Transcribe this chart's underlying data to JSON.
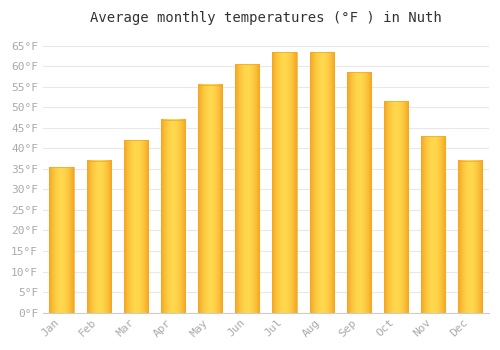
{
  "title": "Average monthly temperatures (°F ) in Nuth",
  "months": [
    "Jan",
    "Feb",
    "Mar",
    "Apr",
    "May",
    "Jun",
    "Jul",
    "Aug",
    "Sep",
    "Oct",
    "Nov",
    "Dec"
  ],
  "values": [
    35.5,
    37.0,
    42.0,
    47.0,
    55.5,
    60.5,
    63.5,
    63.5,
    58.5,
    51.5,
    43.0,
    37.0
  ],
  "bar_color_center": "#FFD84D",
  "bar_color_edge": "#F5A623",
  "background_color": "#ffffff",
  "grid_color": "#e8e8e8",
  "yticks": [
    0,
    5,
    10,
    15,
    20,
    25,
    30,
    35,
    40,
    45,
    50,
    55,
    60,
    65
  ],
  "ylim": [
    0,
    68
  ],
  "title_fontsize": 10,
  "tick_fontsize": 8,
  "tick_color": "#aaaaaa",
  "font_family": "monospace"
}
